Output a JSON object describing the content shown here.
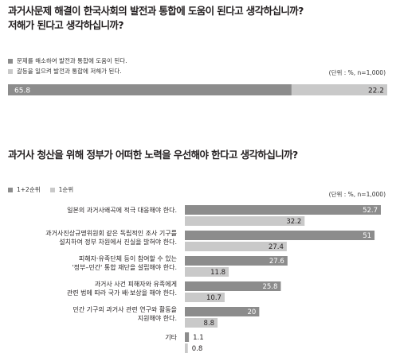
{
  "chart_data": [
    {
      "type": "bar",
      "title_lines": [
        "과거사문제 해결이 한국사회의 발전과 통합에 도움이 된다고 생각하십니까?",
        "저해가 된다고 생각하십니까?"
      ],
      "unit_note": "(단위 : %, n=1,000)",
      "legend": [
        {
          "label": "문제를 해소하여 발전과 통합에 도움이 된다.",
          "color": "#8c8c8c"
        },
        {
          "label": "갈등을 일으켜 발전과 통합에 저해가 된다.",
          "color": "#c9c9c9"
        }
      ],
      "segments": [
        {
          "label": "65.8",
          "value": 65.8,
          "color": "#8c8c8c"
        },
        {
          "label": "22.2",
          "value": 22.2,
          "color": "#c9c9c9"
        }
      ],
      "xlim": [
        0,
        88
      ]
    },
    {
      "type": "bar",
      "title": "과거사 청산을 위해 정부가 어떠한 노력을 우선해야 한다고 생각하십니까?",
      "unit_note": "(단위 : %, n=1,000)",
      "legend": [
        {
          "label": "1+2순위",
          "color": "#8c8c8c"
        },
        {
          "label": "1순위",
          "color": "#c9c9c9"
        }
      ],
      "xlim": [
        0,
        52.7
      ],
      "categories": [
        [
          "일본의 과거사왜곡에 적극 대응해야 한다."
        ],
        [
          "과거사진상규명위원회 같은 독립적인 조사 기구를",
          "설치하여 정부 차원에서 진실을 밝혀야 한다."
        ],
        [
          "피해자·유족단체 등이 참여할 수 있는",
          "'정부–민간' 통합 재단을 설립해야 한다."
        ],
        [
          "과거사 사건 피해자와 유족에게",
          "관련 법에 따라 국가 배·보상을 해야 한다."
        ],
        [
          "민간 기구의 과거사 관련 연구와 활동을",
          "지원해야 한다."
        ],
        [
          "기타"
        ]
      ],
      "series": [
        {
          "name": "1+2순위",
          "color": "#8c8c8c",
          "values": [
            52.7,
            51,
            27.6,
            25.8,
            20,
            1.1
          ],
          "labels": [
            "52.7",
            "51",
            "27.6",
            "25.8",
            "20",
            "1.1"
          ]
        },
        {
          "name": "1순위",
          "color": "#c9c9c9",
          "values": [
            32.2,
            27.4,
            11.8,
            10.7,
            8.8,
            0.8
          ],
          "labels": [
            "32.2",
            "27.4",
            "11.8",
            "10.7",
            "8.8",
            "0.8"
          ]
        }
      ]
    }
  ]
}
